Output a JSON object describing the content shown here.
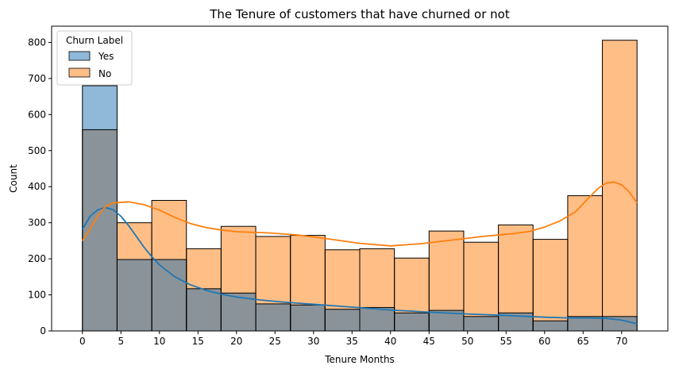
{
  "chart_data": {
    "type": "bar",
    "title": "The Tenure of customers that have churned or not",
    "xlabel": "Tenure Months",
    "ylabel": "Count",
    "xlim": [
      -4,
      76
    ],
    "ylim": [
      0,
      845
    ],
    "xticks": [
      0,
      5,
      10,
      15,
      20,
      25,
      30,
      35,
      40,
      45,
      50,
      55,
      60,
      65,
      70
    ],
    "yticks": [
      0,
      100,
      200,
      300,
      400,
      500,
      600,
      700,
      800
    ],
    "bin_edges": [
      0,
      4.5,
      9,
      13.5,
      18,
      22.5,
      27,
      31.5,
      36,
      40.5,
      45,
      49.5,
      54,
      58.5,
      63,
      67.5,
      72
    ],
    "grid": false,
    "legend": {
      "title": "Churn Label",
      "placement": "top-left"
    },
    "series": [
      {
        "name": "Yes",
        "color": "#1f77b4",
        "fill_color": "#8fb8d9",
        "values": [
          680,
          198,
          198,
          117,
          105,
          75,
          72,
          60,
          65,
          50,
          57,
          40,
          50,
          28,
          40,
          40
        ],
        "kde": [
          [
            0,
            282
          ],
          [
            1,
            318
          ],
          [
            2,
            336
          ],
          [
            3,
            342
          ],
          [
            4,
            336
          ],
          [
            5,
            318
          ],
          [
            6,
            292
          ],
          [
            7,
            262
          ],
          [
            8,
            232
          ],
          [
            9,
            206
          ],
          [
            10,
            183
          ],
          [
            12,
            150
          ],
          [
            14,
            128
          ],
          [
            16,
            113
          ],
          [
            18,
            102
          ],
          [
            20,
            94
          ],
          [
            23,
            86
          ],
          [
            26,
            80
          ],
          [
            30,
            74
          ],
          [
            35,
            66
          ],
          [
            40,
            58
          ],
          [
            45,
            52
          ],
          [
            50,
            47
          ],
          [
            55,
            43
          ],
          [
            58,
            40
          ],
          [
            60,
            38
          ],
          [
            63,
            36
          ],
          [
            66,
            36
          ],
          [
            68,
            35
          ],
          [
            70,
            30
          ],
          [
            72,
            20
          ]
        ]
      },
      {
        "name": "No",
        "color": "#ff7f0e",
        "fill_color": "#ffbe86",
        "values": [
          558,
          300,
          362,
          228,
          290,
          262,
          265,
          225,
          228,
          202,
          277,
          246,
          294,
          254,
          375,
          806
        ],
        "kde": [
          [
            0,
            250
          ],
          [
            1,
            282
          ],
          [
            2,
            320
          ],
          [
            3,
            345
          ],
          [
            4,
            355
          ],
          [
            6,
            358
          ],
          [
            8,
            350
          ],
          [
            10,
            335
          ],
          [
            12,
            315
          ],
          [
            14,
            298
          ],
          [
            16,
            287
          ],
          [
            18,
            280
          ],
          [
            20,
            275
          ],
          [
            24,
            272
          ],
          [
            28,
            266
          ],
          [
            32,
            255
          ],
          [
            36,
            243
          ],
          [
            40,
            236
          ],
          [
            44,
            242
          ],
          [
            48,
            252
          ],
          [
            52,
            262
          ],
          [
            56,
            270
          ],
          [
            58,
            276
          ],
          [
            60,
            288
          ],
          [
            62,
            305
          ],
          [
            64,
            330
          ],
          [
            66,
            375
          ],
          [
            67,
            396
          ],
          [
            68,
            410
          ],
          [
            69,
            413
          ],
          [
            70,
            405
          ],
          [
            71,
            385
          ],
          [
            72,
            355
          ]
        ]
      }
    ]
  }
}
